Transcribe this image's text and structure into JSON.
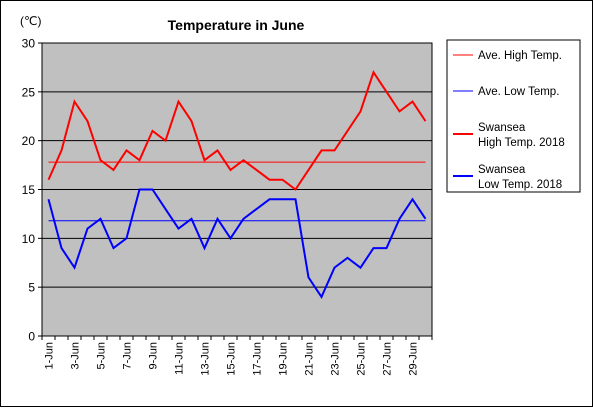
{
  "chart_data": {
    "type": "line",
    "title": "Temperature in June",
    "unit_label": "(℃)",
    "ylim": [
      0,
      30
    ],
    "y_ticks": [
      0,
      5,
      10,
      15,
      20,
      25,
      30
    ],
    "grid": true,
    "legend_position": "right",
    "categories": [
      "1-Jun",
      "2-Jun",
      "3-Jun",
      "4-Jun",
      "5-Jun",
      "6-Jun",
      "7-Jun",
      "8-Jun",
      "9-Jun",
      "10-Jun",
      "11-Jun",
      "12-Jun",
      "13-Jun",
      "14-Jun",
      "15-Jun",
      "16-Jun",
      "17-Jun",
      "18-Jun",
      "19-Jun",
      "20-Jun",
      "21-Jun",
      "22-Jun",
      "23-Jun",
      "24-Jun",
      "25-Jun",
      "26-Jun",
      "27-Jun",
      "28-Jun",
      "29-Jun",
      "30-Jun"
    ],
    "x_tick_labels": [
      "1-Jun",
      "3-Jun",
      "5-Jun",
      "7-Jun",
      "9-Jun",
      "11-Jun",
      "13-Jun",
      "15-Jun",
      "17-Jun",
      "19-Jun",
      "21-Jun",
      "23-Jun",
      "25-Jun",
      "27-Jun",
      "29-Jun"
    ],
    "series": [
      {
        "name": "Ave. High Temp.",
        "color": "#ff0000",
        "width": 1,
        "values": [
          17.8,
          17.8,
          17.8,
          17.8,
          17.8,
          17.8,
          17.8,
          17.8,
          17.8,
          17.8,
          17.8,
          17.8,
          17.8,
          17.8,
          17.8,
          17.8,
          17.8,
          17.8,
          17.8,
          17.8,
          17.8,
          17.8,
          17.8,
          17.8,
          17.8,
          17.8,
          17.8,
          17.8,
          17.8,
          17.8
        ]
      },
      {
        "name": "Ave. Low Temp.",
        "color": "#0000ff",
        "width": 1,
        "values": [
          11.8,
          11.8,
          11.8,
          11.8,
          11.8,
          11.8,
          11.8,
          11.8,
          11.8,
          11.8,
          11.8,
          11.8,
          11.8,
          11.8,
          11.8,
          11.8,
          11.8,
          11.8,
          11.8,
          11.8,
          11.8,
          11.8,
          11.8,
          11.8,
          11.8,
          11.8,
          11.8,
          11.8,
          11.8,
          11.8
        ]
      },
      {
        "name": "Swansea High Temp. 2018",
        "name_lines": [
          "Swansea",
          "High Temp. 2018"
        ],
        "color": "#ff0000",
        "width": 2,
        "values": [
          16,
          19,
          24,
          22,
          18,
          17,
          19,
          18,
          21,
          20,
          24,
          22,
          18,
          19,
          17,
          18,
          17,
          16,
          16,
          15,
          17,
          19,
          19,
          21,
          23,
          27,
          25,
          23,
          24,
          22
        ]
      },
      {
        "name": "Swansea Low Temp. 2018",
        "name_lines": [
          "Swansea",
          "Low Temp. 2018"
        ],
        "color": "#0000ff",
        "width": 2,
        "values": [
          14,
          9,
          7,
          11,
          12,
          9,
          10,
          15,
          15,
          13,
          11,
          12,
          9,
          12,
          10,
          12,
          13,
          14,
          14,
          14,
          6,
          4,
          7,
          8,
          7,
          9,
          9,
          12,
          14,
          12
        ]
      }
    ]
  }
}
